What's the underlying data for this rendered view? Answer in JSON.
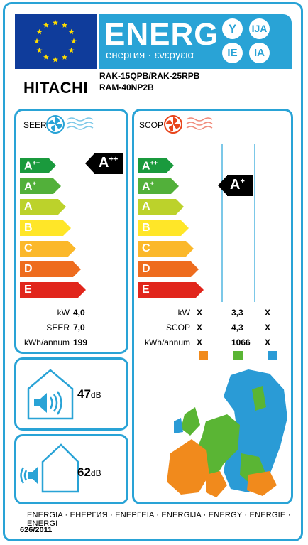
{
  "header": {
    "energy_word": "ENERG",
    "energy_sub": "енергия · ενεργεια",
    "lang_codes": [
      "Y",
      "IJA",
      "IE",
      "IA"
    ],
    "brand": "HITACHI",
    "model_line1": "RAK-15QPB/RAK-25RPB",
    "model_line2": "RAM-40NP2B"
  },
  "colors": {
    "accent": "#29a3d6",
    "flag_blue": "#0f3c9b",
    "classes": [
      "#1a9a3d",
      "#52b03a",
      "#bcd22b",
      "#ffe628",
      "#fbb82a",
      "#ee6c1e",
      "#e1261c"
    ],
    "zones": [
      "#f18a1c",
      "#5ab534",
      "#2a9bd6"
    ]
  },
  "seer": {
    "title": "SEER",
    "classes": [
      {
        "base": "A",
        "sup": "++"
      },
      {
        "base": "A",
        "sup": "+"
      },
      {
        "base": "A",
        "sup": ""
      },
      {
        "base": "B",
        "sup": ""
      },
      {
        "base": "C",
        "sup": ""
      },
      {
        "base": "D",
        "sup": ""
      },
      {
        "base": "E",
        "sup": ""
      }
    ],
    "rating": {
      "base": "A",
      "sup": "++"
    },
    "rows": [
      {
        "label": "kW",
        "value": "4,0"
      },
      {
        "label": "SEER",
        "value": "7,0"
      },
      {
        "label": "kWh/annum",
        "value": "199"
      }
    ]
  },
  "scop": {
    "title": "SCOP",
    "classes": [
      {
        "base": "A",
        "sup": "++"
      },
      {
        "base": "A",
        "sup": "+"
      },
      {
        "base": "A",
        "sup": ""
      },
      {
        "base": "B",
        "sup": ""
      },
      {
        "base": "C",
        "sup": ""
      },
      {
        "base": "D",
        "sup": ""
      },
      {
        "base": "E",
        "sup": ""
      }
    ],
    "rating": {
      "base": "A",
      "sup": "+"
    },
    "rows": [
      {
        "label": "kW",
        "values": [
          "X",
          "3,3",
          "X"
        ]
      },
      {
        "label": "SCOP",
        "values": [
          "X",
          "4,3",
          "X"
        ]
      },
      {
        "label": "kWh/annum",
        "values": [
          "X",
          "1066",
          "X"
        ]
      }
    ]
  },
  "noise_indoor": {
    "value": "47",
    "unit": "dB"
  },
  "noise_outdoor": {
    "value": "62",
    "unit": "dB"
  },
  "footer": {
    "languages": "ENERGIA · ЕНЕРГИЯ · ΕΝΕΡΓΕΙΑ · ENERGIJA · ENERGY · ENERGIE · ENERGI",
    "regulation": "626/2011"
  }
}
